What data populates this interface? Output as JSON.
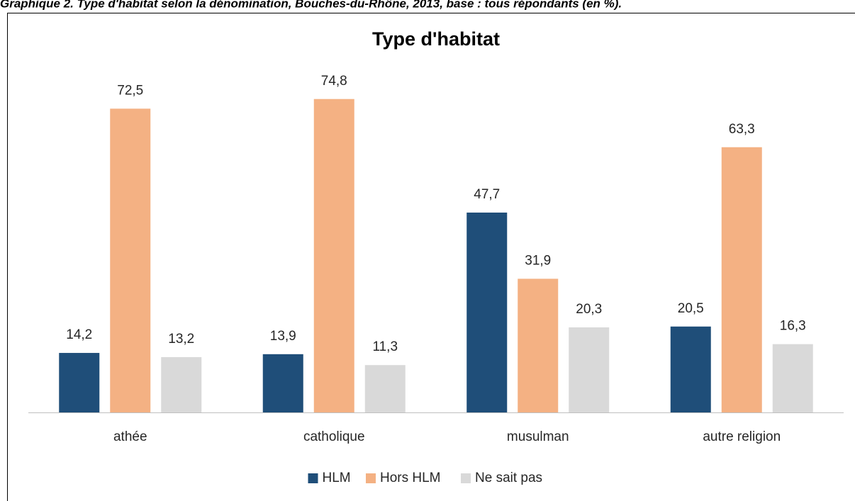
{
  "chart_data": {
    "type": "bar",
    "caption": "Graphique 2. Type d'habitat selon la dénomination, Bouches-du-Rhône, 2013, base : tous répondants (en %).",
    "title": "Type d'habitat",
    "categories": [
      "athée",
      "catholique",
      "musulman",
      "autre religion"
    ],
    "series": [
      {
        "name": "HLM",
        "color": "#1f4e79",
        "values": [
          14.2,
          13.9,
          47.7,
          20.5
        ],
        "value_labels": [
          "14,2",
          "13,9",
          "47,7",
          "20,5"
        ]
      },
      {
        "name": "Hors HLM",
        "color": "#f4b183",
        "values": [
          72.5,
          74.8,
          31.9,
          63.3
        ],
        "value_labels": [
          "72,5",
          "74,8",
          "31,9",
          "63,3"
        ]
      },
      {
        "name": "Ne sait pas",
        "color": "#d9d9d9",
        "values": [
          13.2,
          11.3,
          20.3,
          16.3
        ],
        "value_labels": [
          "13,2",
          "11,3",
          "20,3",
          "16,3"
        ]
      }
    ],
    "ylim": [
      0,
      80
    ],
    "legend": "bottom"
  }
}
